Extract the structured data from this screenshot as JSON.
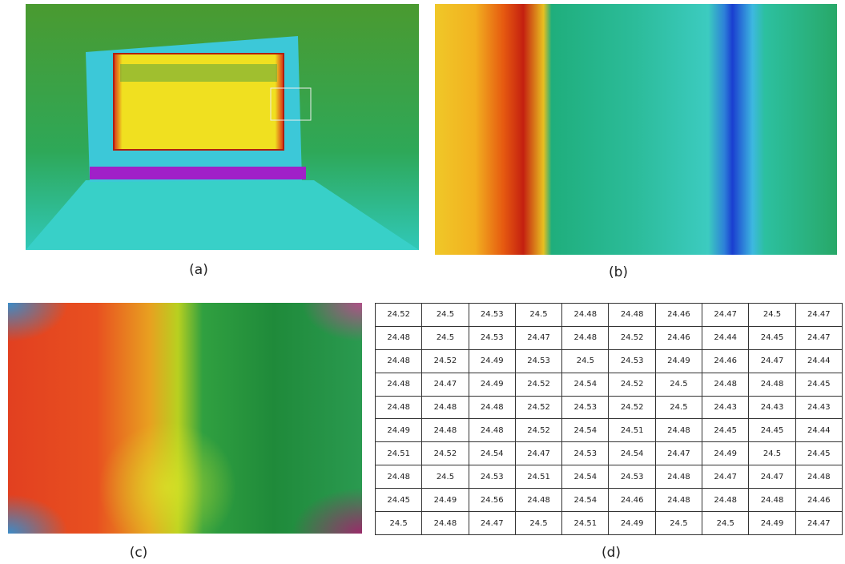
{
  "figure": {
    "captions": [
      "(a)",
      "(b)",
      "(c)",
      "(d)"
    ],
    "table": {
      "rows": [
        [
          24.52,
          24.5,
          24.53,
          24.5,
          24.48,
          24.48,
          24.46,
          24.47,
          24.5,
          24.47
        ],
        [
          24.48,
          24.5,
          24.53,
          24.47,
          24.48,
          24.52,
          24.46,
          24.44,
          24.45,
          24.47
        ],
        [
          24.48,
          24.52,
          24.49,
          24.53,
          24.5,
          24.53,
          24.49,
          24.46,
          24.47,
          24.44
        ],
        [
          24.48,
          24.47,
          24.49,
          24.52,
          24.54,
          24.52,
          24.5,
          24.48,
          24.48,
          24.45
        ],
        [
          24.48,
          24.48,
          24.48,
          24.52,
          24.53,
          24.52,
          24.5,
          24.43,
          24.43,
          24.43
        ],
        [
          24.49,
          24.48,
          24.48,
          24.52,
          24.54,
          24.51,
          24.48,
          24.45,
          24.45,
          24.44
        ],
        [
          24.51,
          24.52,
          24.54,
          24.47,
          24.53,
          24.54,
          24.47,
          24.49,
          24.5,
          24.45
        ],
        [
          24.48,
          24.5,
          24.53,
          24.51,
          24.54,
          24.53,
          24.48,
          24.47,
          24.47,
          24.48
        ],
        [
          24.45,
          24.49,
          24.56,
          24.48,
          24.54,
          24.46,
          24.48,
          24.48,
          24.48,
          24.46
        ],
        [
          24.5,
          24.48,
          24.47,
          24.5,
          24.51,
          24.49,
          24.5,
          24.5,
          24.49,
          24.47
        ]
      ]
    }
  }
}
